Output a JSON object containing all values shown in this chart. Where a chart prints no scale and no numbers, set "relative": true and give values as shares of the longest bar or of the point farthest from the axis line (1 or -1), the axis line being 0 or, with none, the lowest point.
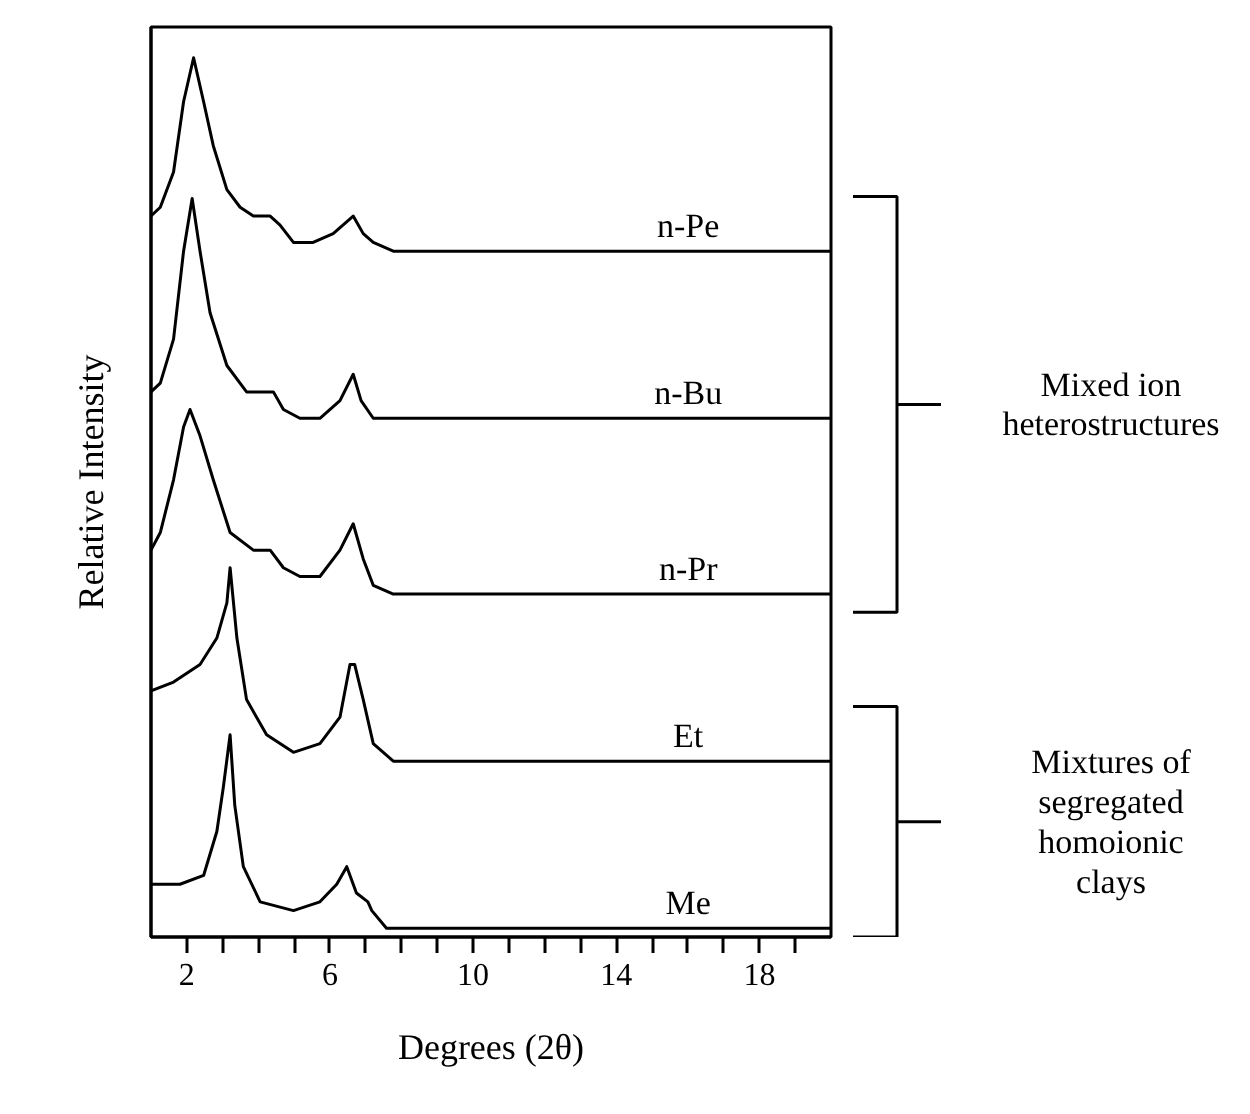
{
  "chart_data": {
    "type": "line",
    "relative": true,
    "xlabel": "Degrees (2θ)",
    "ylabel": "Relative Intensity",
    "xlim": [
      1,
      20
    ],
    "xticks": [
      2,
      {
        "value": 3,
        "label": null
      },
      {
        "value": 4,
        "label": null
      },
      {
        "value": 5,
        "label": null
      },
      6,
      {
        "value": 7,
        "label": null
      },
      {
        "value": 8,
        "label": null
      },
      {
        "value": 9,
        "label": null
      },
      10,
      {
        "value": 11,
        "label": null
      },
      {
        "value": 12,
        "label": null
      },
      {
        "value": 13,
        "label": null
      },
      14,
      {
        "value": 15,
        "label": null
      },
      {
        "value": 16,
        "label": null
      },
      {
        "value": 17,
        "label": null
      },
      18,
      {
        "value": 19,
        "label": null
      }
    ],
    "tick_labels": "x",
    "grid": false,
    "series": [
      {
        "name": "n-Pe",
        "color": "#000000",
        "x": [
          1.0,
          1.26,
          1.63,
          1.91,
          2.19,
          2.47,
          2.74,
          3.12,
          3.49,
          3.86,
          4.33,
          4.6,
          4.98,
          5.53,
          6.09,
          6.65,
          6.93,
          7.21,
          7.77,
          20
        ],
        "values": [
          0.82,
          0.83,
          0.87,
          0.95,
          1.0,
          0.95,
          0.9,
          0.85,
          0.83,
          0.82,
          0.82,
          0.81,
          0.79,
          0.79,
          0.8,
          0.82,
          0.8,
          0.79,
          0.78,
          0.78
        ]
      },
      {
        "name": "n-Bu",
        "color": "#000000",
        "x": [
          1.0,
          1.26,
          1.63,
          1.91,
          2.15,
          2.37,
          2.65,
          3.12,
          3.67,
          4.14,
          4.42,
          4.7,
          5.16,
          5.72,
          6.28,
          6.65,
          6.87,
          7.21,
          7.77,
          20
        ],
        "values": [
          0.62,
          0.63,
          0.68,
          0.78,
          0.84,
          0.78,
          0.71,
          0.65,
          0.62,
          0.62,
          0.62,
          0.6,
          0.59,
          0.59,
          0.61,
          0.64,
          0.61,
          0.59,
          0.59,
          0.59
        ]
      },
      {
        "name": "n-Pr",
        "color": "#000000",
        "x": [
          1.0,
          1.26,
          1.63,
          1.91,
          2.09,
          2.37,
          2.74,
          3.21,
          3.86,
          4.33,
          4.7,
          5.16,
          5.72,
          6.28,
          6.65,
          6.93,
          7.21,
          7.77,
          20
        ],
        "values": [
          0.44,
          0.46,
          0.52,
          0.58,
          0.6,
          0.57,
          0.52,
          0.46,
          0.44,
          0.44,
          0.42,
          0.41,
          0.41,
          0.44,
          0.47,
          0.43,
          0.4,
          0.39,
          0.39
        ]
      },
      {
        "name": "Et",
        "color": "#000000",
        "x": [
          1.0,
          1.63,
          2.37,
          2.84,
          3.12,
          3.21,
          3.4,
          3.67,
          4.23,
          4.98,
          5.72,
          6.28,
          6.56,
          6.69,
          6.93,
          7.21,
          7.77,
          20
        ],
        "values": [
          0.28,
          0.29,
          0.31,
          0.34,
          0.38,
          0.42,
          0.34,
          0.27,
          0.23,
          0.21,
          0.22,
          0.25,
          0.31,
          0.31,
          0.27,
          0.22,
          0.2,
          0.2
        ]
      },
      {
        "name": "Me",
        "color": "#000000",
        "x": [
          1.0,
          1.81,
          2.47,
          2.84,
          3.02,
          3.21,
          3.34,
          3.58,
          4.05,
          4.98,
          5.72,
          6.19,
          6.47,
          6.74,
          7.06,
          7.17,
          7.58,
          8.51,
          20
        ],
        "values": [
          0.06,
          0.06,
          0.07,
          0.12,
          0.17,
          0.23,
          0.15,
          0.08,
          0.04,
          0.03,
          0.04,
          0.06,
          0.08,
          0.05,
          0.04,
          0.03,
          0.01,
          0.01,
          0.01
        ]
      }
    ],
    "annotations": [
      "Mixed ion\nheterostructures",
      "Mixtures of\nsegregated\nhomoionic\nclays"
    ]
  }
}
